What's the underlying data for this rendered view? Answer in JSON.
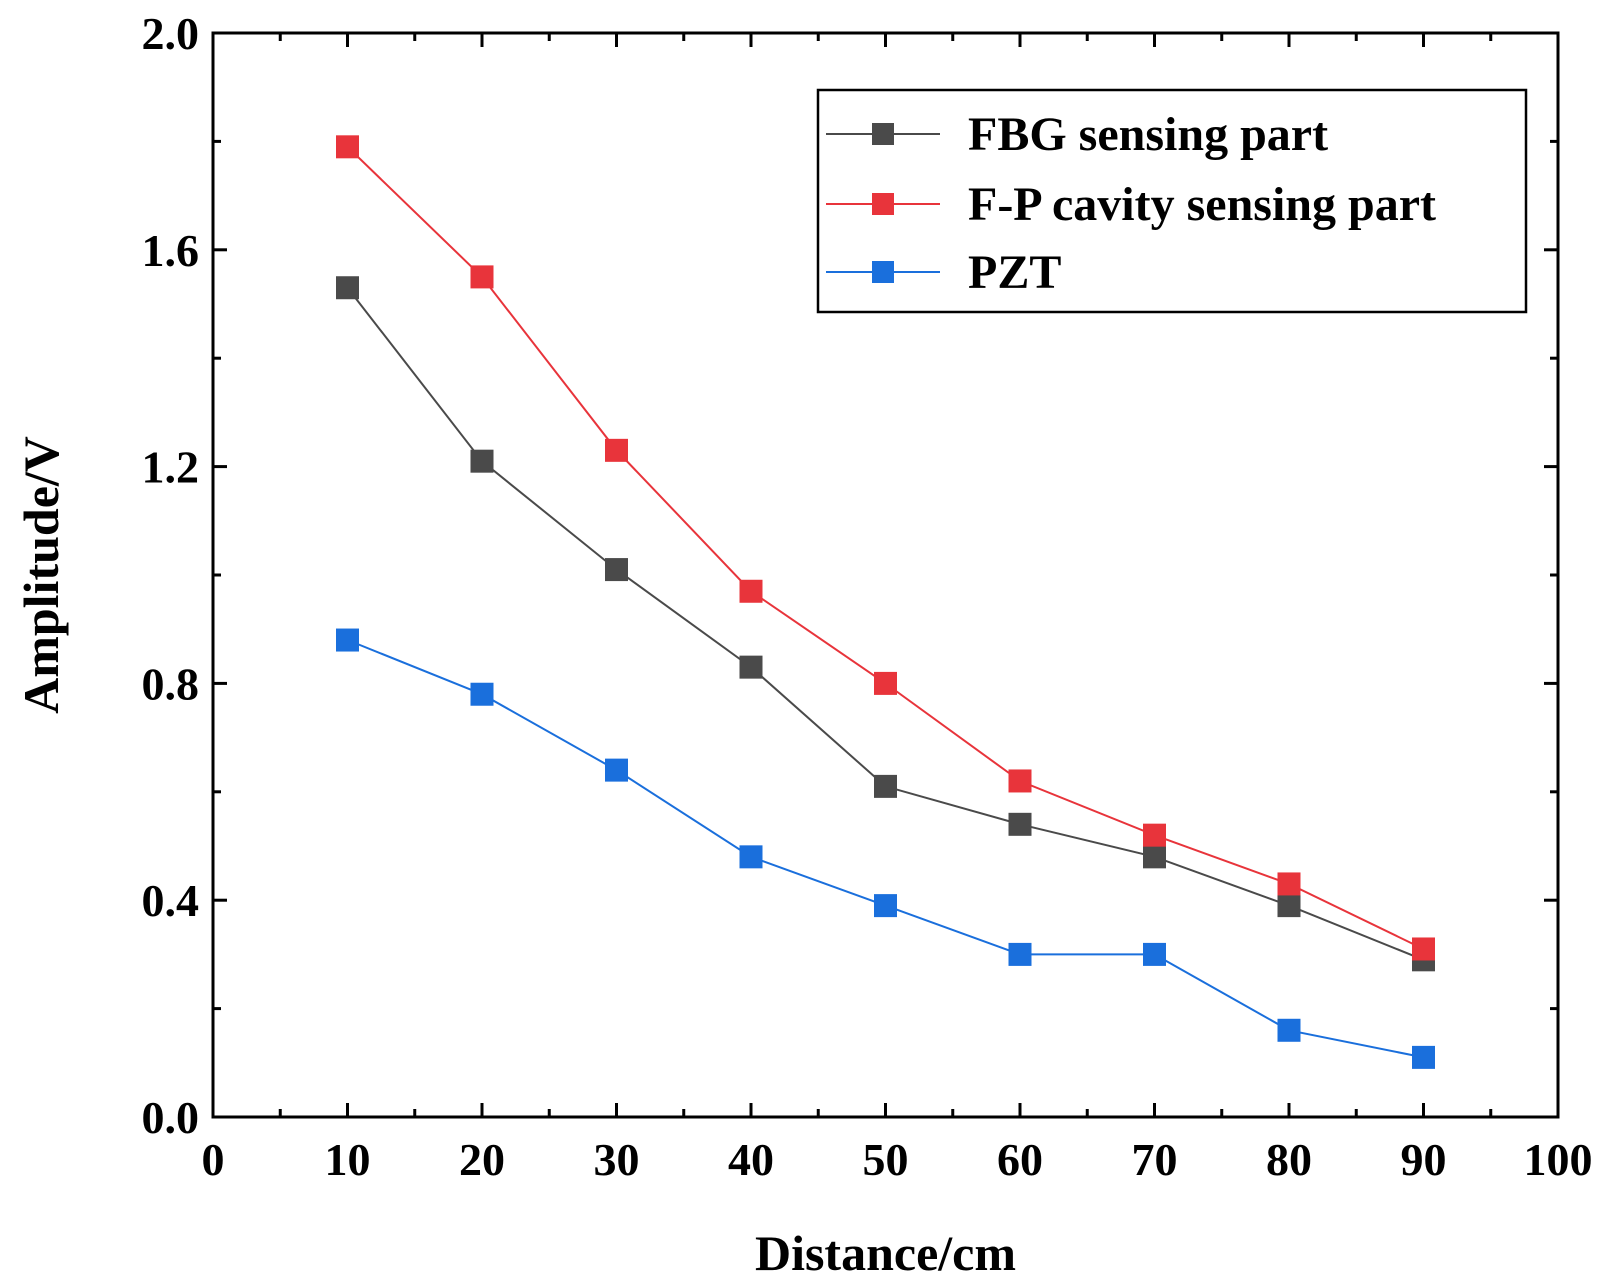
{
  "chart_data": {
    "type": "line",
    "title": "",
    "xlabel": "Distance/cm",
    "ylabel": "Amplitude/V",
    "xlim": [
      0,
      100
    ],
    "ylim": [
      0.0,
      2.0
    ],
    "x_ticks": [
      "0",
      "10",
      "20",
      "30",
      "40",
      "50",
      "60",
      "70",
      "80",
      "90",
      "100"
    ],
    "y_ticks": [
      "0.0",
      "0.4",
      "0.8",
      "1.2",
      "1.6",
      "2.0"
    ],
    "grid": false,
    "legend_position": "top-right",
    "x": [
      10,
      20,
      30,
      40,
      50,
      60,
      70,
      80,
      90
    ],
    "series": [
      {
        "name": "FBG sensing part",
        "color": "#4a4a4a",
        "marker": "square",
        "values": [
          1.53,
          1.21,
          1.01,
          0.83,
          0.61,
          0.54,
          0.48,
          0.39,
          0.29
        ]
      },
      {
        "name": "F-P cavity sensing part",
        "color": "#e8343b",
        "marker": "square",
        "values": [
          1.79,
          1.55,
          1.23,
          0.97,
          0.8,
          0.62,
          0.52,
          0.43,
          0.31
        ]
      },
      {
        "name": "PZT",
        "color": "#1a6fdc",
        "marker": "square",
        "values": [
          0.88,
          0.78,
          0.64,
          0.48,
          0.39,
          0.3,
          0.3,
          0.16,
          0.11
        ]
      }
    ]
  }
}
